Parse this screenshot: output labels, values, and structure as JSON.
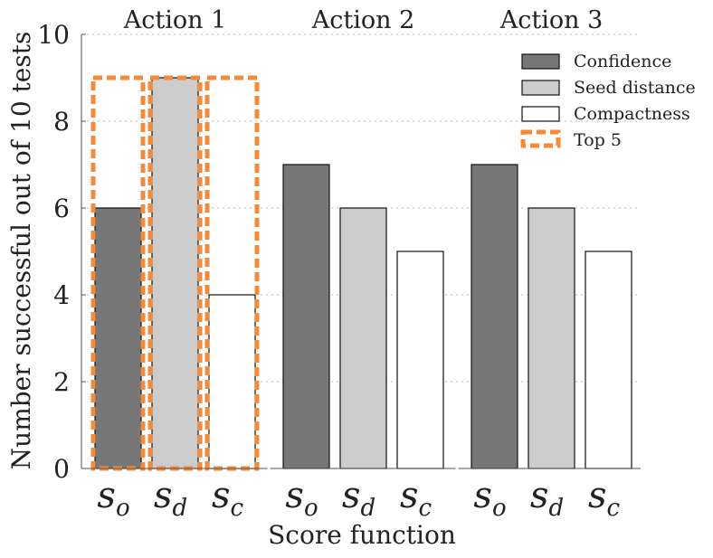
{
  "chart_data": {
    "type": "bar",
    "panels": [
      "Action 1",
      "Action 2",
      "Action 3"
    ],
    "categories": [
      "s_o",
      "s_d",
      "s_c"
    ],
    "category_labels": [
      {
        "main": "s",
        "sub": "o"
      },
      {
        "main": "s",
        "sub": "d"
      },
      {
        "main": "s",
        "sub": "c"
      }
    ],
    "series": [
      {
        "name": "Confidence",
        "color": "#777777",
        "values": [
          6,
          7,
          7
        ]
      },
      {
        "name": "Seed distance",
        "color": "#cccccc",
        "values": [
          9,
          6,
          6
        ]
      },
      {
        "name": "Compactness",
        "color": "#ffffff",
        "values": [
          4,
          5,
          5
        ]
      }
    ],
    "top5": {
      "name": "Top 5",
      "color": "#f58b38",
      "panel": "Action 1",
      "values": [
        9,
        9,
        9
      ]
    },
    "xlabel": "Score function",
    "ylabel": "Number successful out of 10 tests",
    "ylim": [
      0,
      10
    ],
    "yticks": [
      0,
      2,
      4,
      6,
      8,
      10
    ],
    "grid": "horizontal dotted",
    "legend": {
      "placement": "top-right",
      "entries": [
        "Confidence",
        "Seed distance",
        "Compactness",
        "Top 5"
      ]
    }
  }
}
